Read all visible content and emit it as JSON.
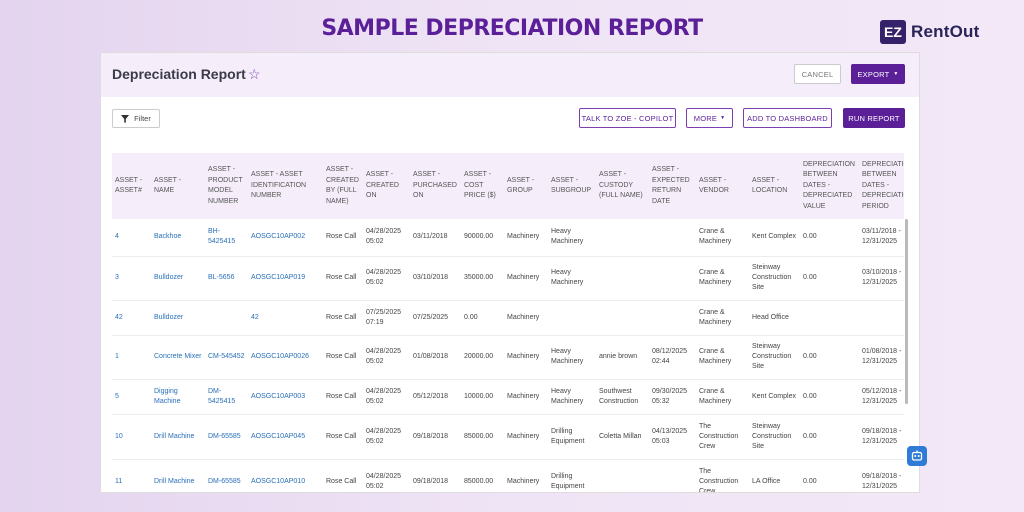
{
  "banner": {
    "title": "SAMPLE DEPRECIATION REPORT"
  },
  "brand": {
    "badge": "EZ",
    "name": "RentOut"
  },
  "header": {
    "title": "Depreciation Report",
    "cancel": "CANCEL",
    "export": "EXPORT"
  },
  "toolbar": {
    "filter": "Filter",
    "zoe": "TALK TO ZOE - COPILOT",
    "more": "MORE",
    "dashboard": "ADD TO DASHBOARD",
    "run": "RUN REPORT"
  },
  "table": {
    "headers": [
      "ASSET - ASSET#",
      "ASSET - NAME",
      "ASSET - PRODUCT MODEL NUMBER",
      "ASSET - ASSET IDENTIFICATION NUMBER",
      "ASSET - CREATED BY (FULL NAME)",
      "ASSET - CREATED ON",
      "ASSET - PURCHASED ON",
      "ASSET - COST PRICE ($)",
      "ASSET - GROUP",
      "ASSET - SUBGROUP",
      "ASSET - CUSTODY (FULL NAME)",
      "ASSET - EXPECTED RETURN DATE",
      "ASSET - VENDOR",
      "ASSET - LOCATION",
      "DEPRECIATION BETWEEN DATES - DEPRECIATED VALUE",
      "DEPRECIATION BETWEEN DATES - DEPRECIATION PERIOD"
    ],
    "rows": [
      [
        "4",
        "Backhoe",
        "BH-5425415",
        "AOSGC10AP002",
        "Rose Call",
        "04/28/2025 05:02",
        "03/11/2018",
        "90000.00",
        "Machinery",
        "Heavy Machinery",
        "",
        "",
        "Crane & Machinery",
        "Kent Complex",
        "0.00",
        "03/11/2018 - 12/31/2025"
      ],
      [
        "3",
        "Bulldozer",
        "BL-5656",
        "AOSGC10AP019",
        "Rose Call",
        "04/28/2025 05:02",
        "03/10/2018",
        "35000.00",
        "Machinery",
        "Heavy Machinery",
        "",
        "",
        "Crane & Machinery",
        "Steinway Construction Site",
        "0.00",
        "03/10/2018 - 12/31/2025"
      ],
      [
        "42",
        "Bulldozer",
        "",
        "42",
        "Rose Call",
        "07/25/2025 07:19",
        "07/25/2025",
        "0.00",
        "Machinery",
        "",
        "",
        "",
        "Crane & Machinery",
        "Head Office",
        "",
        ""
      ],
      [
        "1",
        "Concrete Mixer",
        "CM-545452",
        "AOSGC10AP0026",
        "Rose Call",
        "04/28/2025 05:02",
        "01/08/2018",
        "20000.00",
        "Machinery",
        "Heavy Machinery",
        "annie brown",
        "08/12/2025 02:44",
        "Crane & Machinery",
        "Steinway Construction Site",
        "0.00",
        "01/08/2018 - 12/31/2025"
      ],
      [
        "5",
        "Digging Machine",
        "DM-5425415",
        "AOSGC10AP003",
        "Rose Call",
        "04/28/2025 05:02",
        "05/12/2018",
        "10000.00",
        "Machinery",
        "Heavy Machinery",
        "Southwest Construction",
        "09/30/2025 05:32",
        "Crane & Machinery",
        "Kent Complex",
        "0.00",
        "05/12/2018 - 12/31/2025"
      ],
      [
        "10",
        "Drill Machine",
        "DM-65585",
        "AOSGC10AP045",
        "Rose Call",
        "04/28/2025 05:02",
        "09/18/2018",
        "85000.00",
        "Machinery",
        "Drilling Equipment",
        "Coletta Millan",
        "04/13/2025 05:03",
        "The Construction Crew",
        "Steinway Construction Site",
        "0.00",
        "09/18/2018 - 12/31/2025"
      ],
      [
        "11",
        "Drill Machine",
        "DM-65585",
        "AOSGC10AP010",
        "Rose Call",
        "04/28/2025 05:02",
        "09/18/2018",
        "85000.00",
        "Machinery",
        "Drilling Equipment",
        "",
        "",
        "The Construction Crew",
        "LA Office",
        "0.00",
        "09/18/2018 - 12/31/2025"
      ]
    ]
  }
}
